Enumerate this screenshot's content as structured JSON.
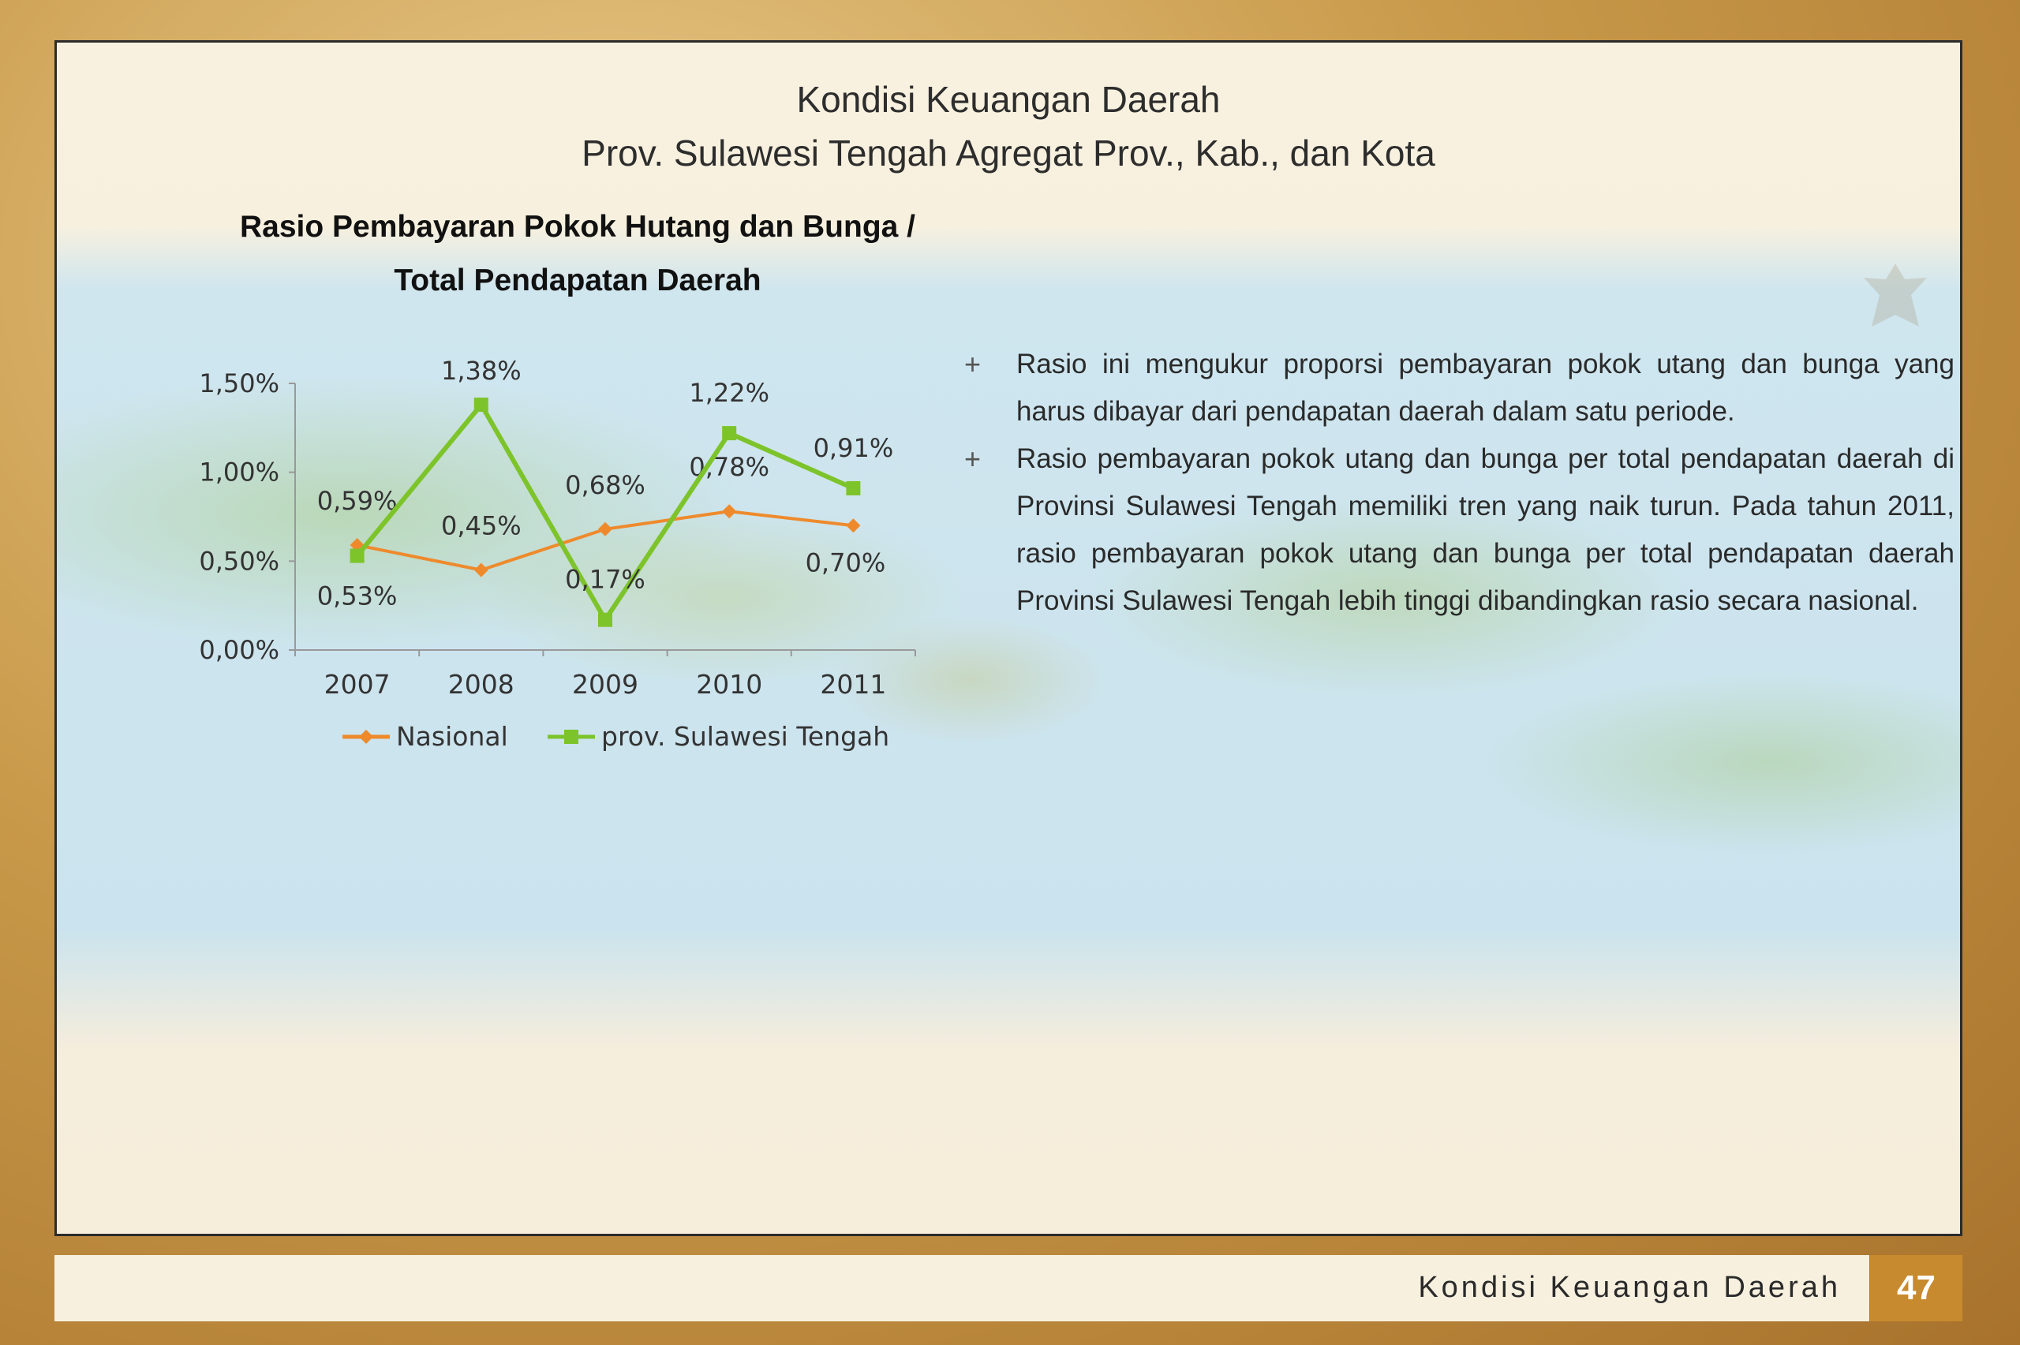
{
  "header": {
    "title_line1": "Kondisi Keuangan Daerah",
    "title_line2": "Prov. Sulawesi Tengah Agregat Prov., Kab., dan Kota"
  },
  "chart_data": {
    "type": "line",
    "title": "Rasio Pembayaran Pokok Hutang dan Bunga / Total Pendapatan Daerah",
    "title_line1": "Rasio Pembayaran Pokok Hutang dan Bunga /",
    "title_line2": "Total Pendapatan Daerah",
    "categories": [
      "2007",
      "2008",
      "2009",
      "2010",
      "2011"
    ],
    "y_ticks": [
      "1,50%",
      "1,00%",
      "0,50%",
      "0,00%"
    ],
    "y_tick_values": [
      1.5,
      1.0,
      0.5,
      0.0
    ],
    "ylim": [
      0,
      1.5
    ],
    "grid": false,
    "legend_position": "bottom",
    "series": [
      {
        "name": "Nasional",
        "values": [
          0.59,
          0.45,
          0.68,
          0.78,
          0.7
        ],
        "labels": [
          "0,59%",
          "0,45%",
          "0,68%",
          "0,78%",
          "0,70%"
        ],
        "color": "#ee8a2c",
        "marker": "diamond"
      },
      {
        "name": "prov. Sulawesi Tengah",
        "values": [
          0.53,
          1.38,
          0.17,
          1.22,
          0.91
        ],
        "labels": [
          "0,53%",
          "1,38%",
          "0,17%",
          "1,22%",
          "0,91%"
        ],
        "color": "#7dc42b",
        "marker": "square"
      }
    ]
  },
  "bullets": [
    "Rasio ini mengukur proporsi pembayaran pokok utang dan bunga yang harus dibayar dari pendapatan daerah dalam satu periode.",
    "Rasio pembayaran pokok utang dan bunga per total pendapatan daerah di Provinsi Sulawesi Tengah memiliki tren yang naik turun. Pada tahun 2011, rasio pembayaran pokok utang dan bunga per total pendapatan daerah Provinsi Sulawesi Tengah lebih tinggi dibandingkan rasio secara nasional."
  ],
  "bullet_marker": "+",
  "footer": {
    "section": "Kondisi Keuangan Daerah",
    "page_number": "47"
  }
}
